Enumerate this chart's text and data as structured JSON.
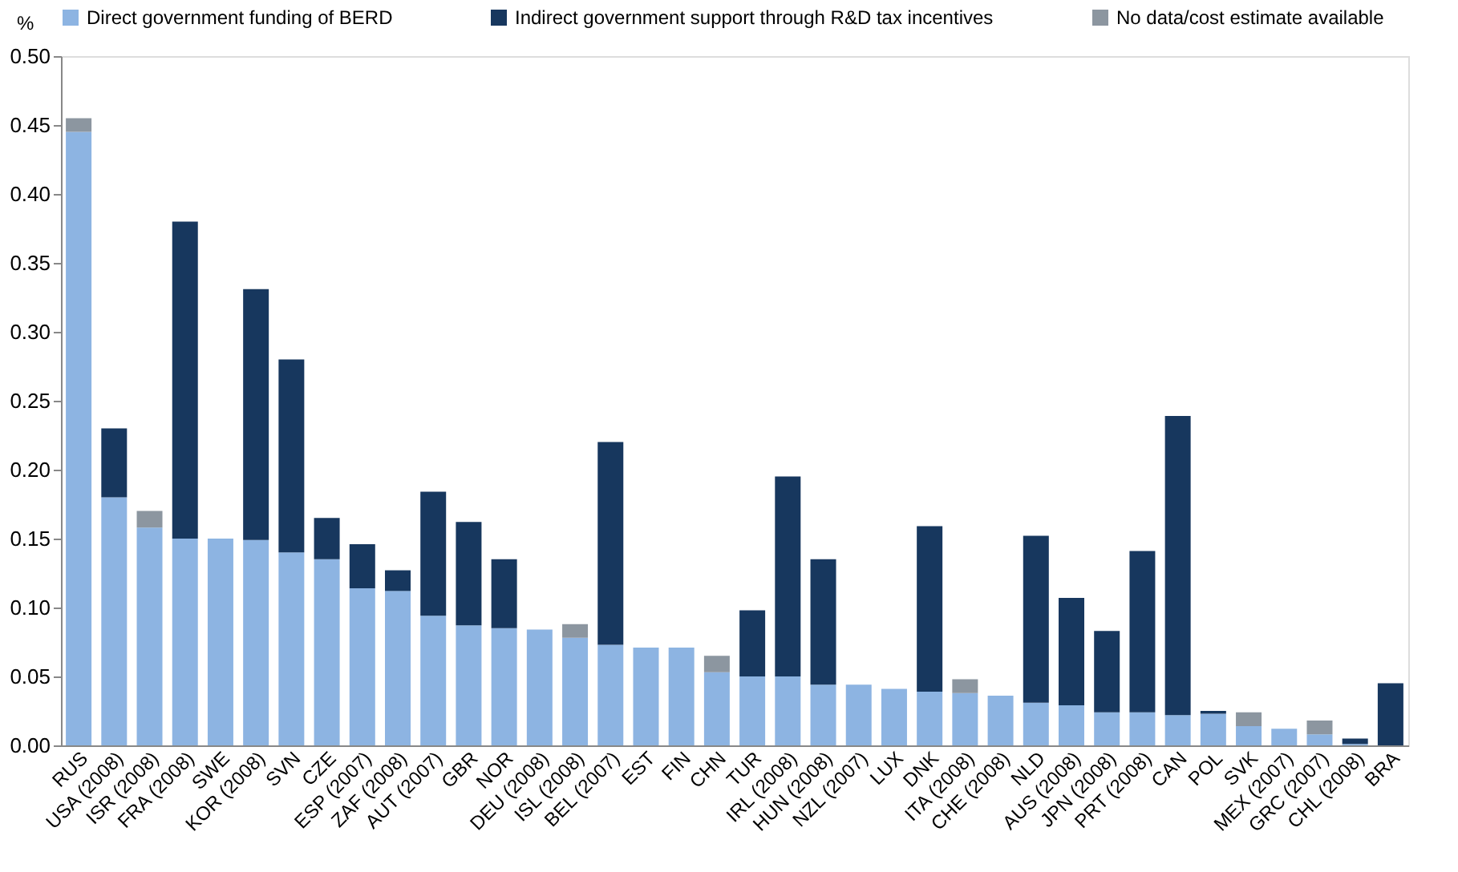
{
  "chart_data": {
    "type": "bar",
    "stacked": true,
    "ylabel": "%",
    "legend": "top",
    "grid": false,
    "categories": [
      "RUS",
      "USA (2008)",
      "ISR (2008)",
      "FRA (2008)",
      "SWE",
      "KOR (2008)",
      "SVN",
      "CZE",
      "ESP (2007)",
      "ZAF (2008)",
      "AUT (2007)",
      "GBR",
      "NOR",
      "DEU (2008)",
      "ISL (2008)",
      "BEL (2007)",
      "EST",
      "FIN",
      "CHN",
      "TUR",
      "IRL (2008)",
      "HUN (2008)",
      "NZL (2007)",
      "LUX",
      "DNK",
      "ITA (2008)",
      "CHE (2008)",
      "NLD",
      "AUS (2008)",
      "JPN (2008)",
      "PRT (2008)",
      "CAN",
      "POL",
      "SVK",
      "MEX (2007)",
      "GRC (2007)",
      "CHL (2008)",
      "BRA"
    ],
    "ylim": [
      0,
      0.5
    ],
    "yticks": [
      {
        "value": 0,
        "label": "0.00"
      },
      {
        "value": 0.05,
        "label": "0.05"
      },
      {
        "value": 0.1,
        "label": "0.10"
      },
      {
        "value": 0.15,
        "label": "0.15"
      },
      {
        "value": 0.2,
        "label": "0.20"
      },
      {
        "value": 0.25,
        "label": "0.25"
      },
      {
        "value": 0.3,
        "label": "0.30"
      },
      {
        "value": 0.35,
        "label": "0.35"
      },
      {
        "value": 0.4,
        "label": "0.40"
      },
      {
        "value": 0.45,
        "label": "0.45"
      },
      {
        "value": 0.5,
        "label": "0.50"
      }
    ],
    "series": [
      {
        "name": "Direct government funding of BERD",
        "color": "#8db4e2",
        "values": [
          0.445,
          0.18,
          0.158,
          0.15,
          0.15,
          0.149,
          0.14,
          0.135,
          0.114,
          0.112,
          0.094,
          0.087,
          0.085,
          0.084,
          0.078,
          0.073,
          0.071,
          0.071,
          0.053,
          0.05,
          0.05,
          0.044,
          0.044,
          0.041,
          0.039,
          0.038,
          0.036,
          0.031,
          0.029,
          0.024,
          0.024,
          0.022,
          0.023,
          0.014,
          0.012,
          0.008,
          0.001,
          0
        ]
      },
      {
        "name": "Indirect government support through R&D tax incentives",
        "color": "#17375e",
        "values": [
          0,
          0.05,
          0,
          0.23,
          0,
          0.182,
          0.14,
          0.03,
          0.032,
          0.015,
          0.09,
          0.075,
          0.05,
          0,
          0,
          0.147,
          0,
          0,
          0,
          0.048,
          0.145,
          0.091,
          0,
          0,
          0.12,
          0,
          0,
          0.121,
          0.078,
          0.059,
          0.117,
          0.217,
          0.002,
          0,
          0,
          0,
          0.004,
          0.045
        ]
      },
      {
        "name": "No data/cost estimate available",
        "color": "#8c96a0",
        "values": [
          0.01,
          0,
          0.012,
          0,
          0,
          0,
          0,
          0,
          0,
          0,
          0,
          0,
          0,
          0,
          0.01,
          0,
          0,
          0,
          0.012,
          0,
          0,
          0,
          0,
          0,
          0,
          0.01,
          0,
          0,
          0,
          0,
          0,
          0,
          0,
          0.01,
          0,
          0.01,
          0,
          0
        ]
      }
    ]
  }
}
